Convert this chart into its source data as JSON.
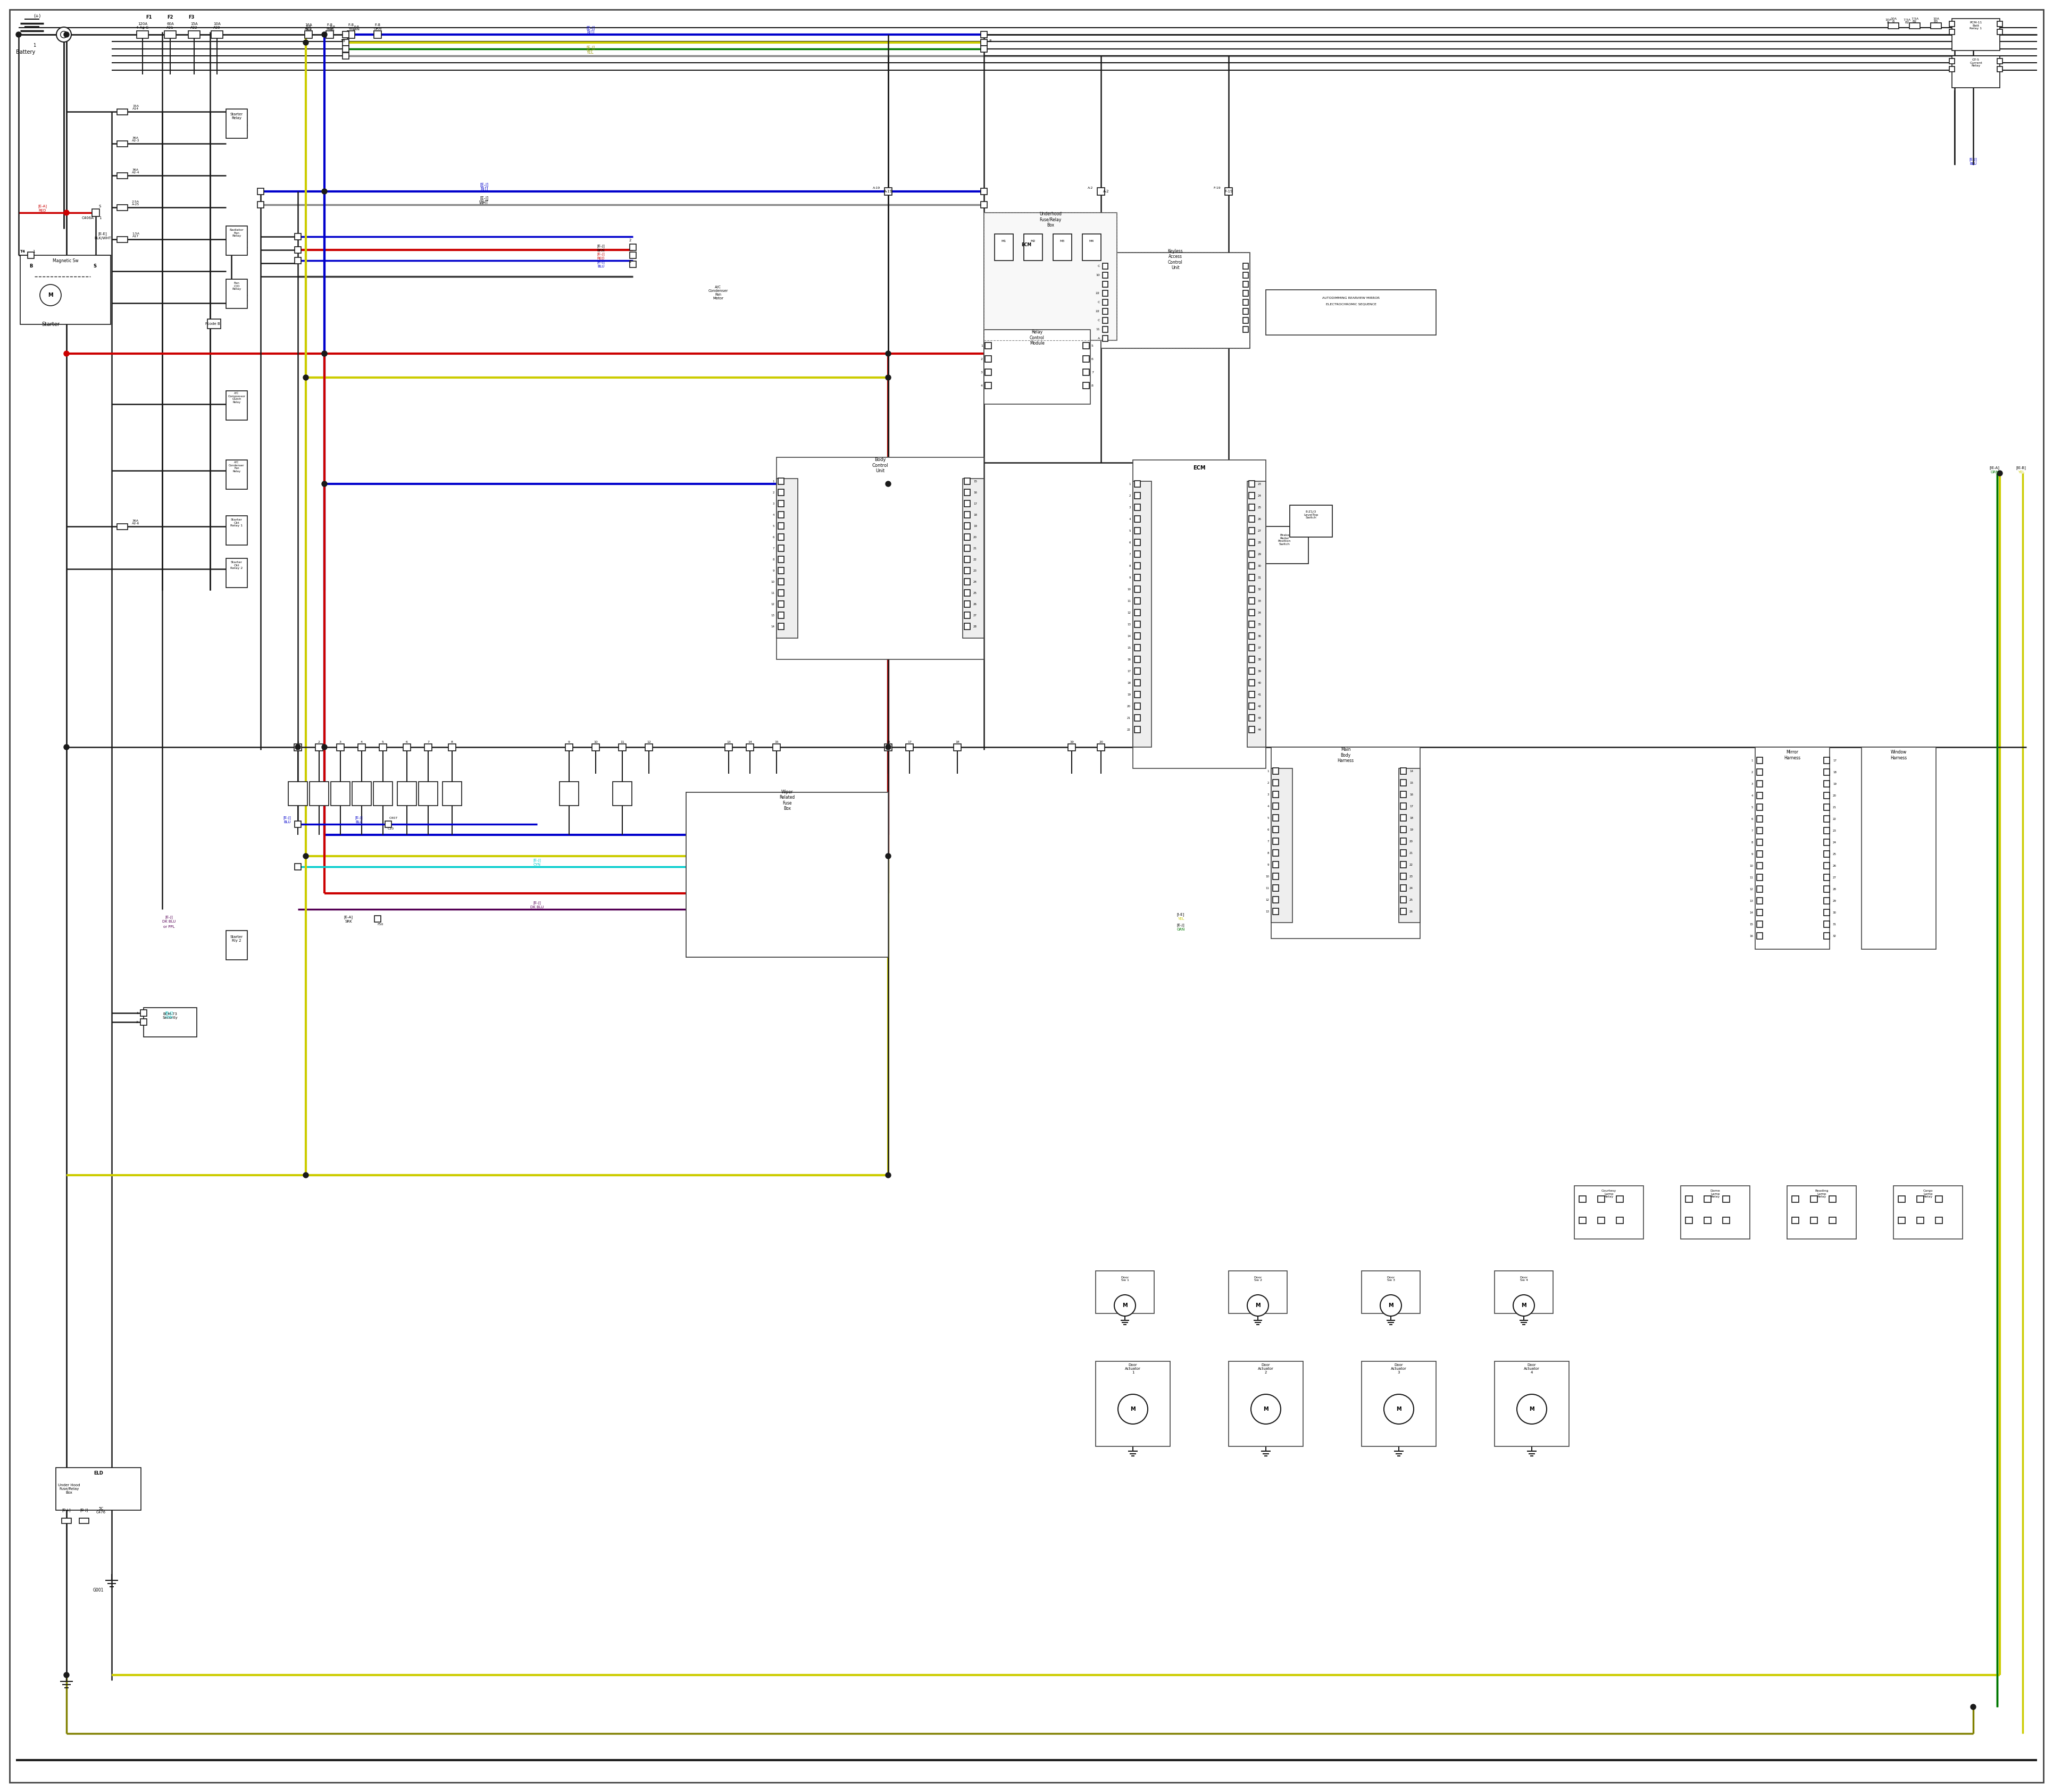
{
  "bg_color": "#ffffff",
  "lc": "#1a1a1a",
  "red": "#cc0000",
  "blue": "#0000cc",
  "yellow": "#cccc00",
  "cyan": "#00cccc",
  "green": "#007700",
  "purple": "#550055",
  "olive": "#808000",
  "gray": "#888888",
  "lw": 1.8,
  "lw2": 2.5,
  "lw3": 3.0
}
